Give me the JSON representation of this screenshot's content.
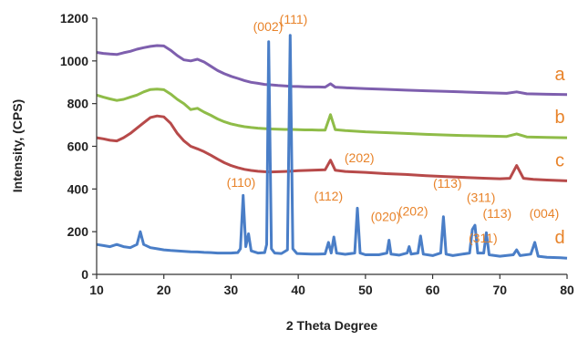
{
  "chart_data": {
    "type": "line",
    "title": "",
    "xlabel": "2 Theta Degree",
    "ylabel": "Intensity, (CPS)",
    "xlim": [
      10,
      80
    ],
    "ylim": [
      0,
      1200
    ],
    "xticks": [
      "10",
      "20",
      "30",
      "40",
      "50",
      "60",
      "70",
      "80"
    ],
    "yticks": [
      "0",
      "200",
      "400",
      "600",
      "800",
      "1000",
      "1200"
    ],
    "grid": false,
    "series": [
      {
        "name": "a",
        "color": "#7e5fae",
        "points": [
          [
            10,
            1040
          ],
          [
            11,
            1035
          ],
          [
            12,
            1032
          ],
          [
            13,
            1030
          ],
          [
            14,
            1038
          ],
          [
            15,
            1045
          ],
          [
            16,
            1055
          ],
          [
            17,
            1062
          ],
          [
            18,
            1068
          ],
          [
            19,
            1072
          ],
          [
            20,
            1070
          ],
          [
            21,
            1050
          ],
          [
            22,
            1025
          ],
          [
            23,
            1005
          ],
          [
            24,
            1000
          ],
          [
            25,
            1008
          ],
          [
            26,
            995
          ],
          [
            27,
            975
          ],
          [
            28,
            955
          ],
          [
            29,
            940
          ],
          [
            30,
            928
          ],
          [
            31,
            918
          ],
          [
            32,
            908
          ],
          [
            33,
            900
          ],
          [
            34,
            895
          ],
          [
            35,
            890
          ],
          [
            36,
            888
          ],
          [
            37,
            885
          ],
          [
            38,
            883
          ],
          [
            39,
            881
          ],
          [
            40,
            880
          ],
          [
            41,
            879
          ],
          [
            42,
            878
          ],
          [
            43,
            878
          ],
          [
            44,
            877
          ],
          [
            44.8,
            893
          ],
          [
            45.5,
            877
          ],
          [
            47,
            874
          ],
          [
            50,
            870
          ],
          [
            53,
            867
          ],
          [
            56,
            863
          ],
          [
            59,
            860
          ],
          [
            62,
            857
          ],
          [
            65,
            854
          ],
          [
            68,
            851
          ],
          [
            71,
            848
          ],
          [
            72.5,
            855
          ],
          [
            74,
            846
          ],
          [
            77,
            844
          ],
          [
            80,
            842
          ]
        ]
      },
      {
        "name": "b",
        "color": "#8fbc48",
        "points": [
          [
            10,
            840
          ],
          [
            11,
            830
          ],
          [
            12,
            822
          ],
          [
            13,
            815
          ],
          [
            14,
            820
          ],
          [
            15,
            830
          ],
          [
            16,
            840
          ],
          [
            17,
            855
          ],
          [
            18,
            866
          ],
          [
            19,
            868
          ],
          [
            20,
            865
          ],
          [
            21,
            845
          ],
          [
            22,
            820
          ],
          [
            23,
            800
          ],
          [
            24,
            772
          ],
          [
            25,
            778
          ],
          [
            26,
            760
          ],
          [
            27,
            745
          ],
          [
            28,
            728
          ],
          [
            29,
            715
          ],
          [
            30,
            705
          ],
          [
            31,
            698
          ],
          [
            32,
            692
          ],
          [
            33,
            688
          ],
          [
            34,
            685
          ],
          [
            35,
            683
          ],
          [
            36,
            681
          ],
          [
            37,
            680
          ],
          [
            38,
            679
          ],
          [
            39,
            679
          ],
          [
            40,
            678
          ],
          [
            41,
            677
          ],
          [
            42,
            677
          ],
          [
            43,
            676
          ],
          [
            44,
            676
          ],
          [
            44.8,
            748
          ],
          [
            45.5,
            678
          ],
          [
            47,
            674
          ],
          [
            50,
            668
          ],
          [
            53,
            664
          ],
          [
            56,
            660
          ],
          [
            59,
            656
          ],
          [
            62,
            653
          ],
          [
            65,
            650
          ],
          [
            68,
            648
          ],
          [
            71,
            646
          ],
          [
            72.5,
            658
          ],
          [
            74,
            644
          ],
          [
            77,
            642
          ],
          [
            80,
            640
          ]
        ]
      },
      {
        "name": "c",
        "color": "#b74a4a",
        "points": [
          [
            10,
            640
          ],
          [
            11,
            635
          ],
          [
            12,
            628
          ],
          [
            13,
            625
          ],
          [
            14,
            640
          ],
          [
            15,
            660
          ],
          [
            16,
            685
          ],
          [
            17,
            710
          ],
          [
            18,
            735
          ],
          [
            19,
            742
          ],
          [
            20,
            738
          ],
          [
            21,
            708
          ],
          [
            22,
            660
          ],
          [
            23,
            625
          ],
          [
            24,
            600
          ],
          [
            25,
            588
          ],
          [
            26,
            575
          ],
          [
            27,
            558
          ],
          [
            28,
            540
          ],
          [
            29,
            523
          ],
          [
            30,
            510
          ],
          [
            31,
            500
          ],
          [
            32,
            492
          ],
          [
            33,
            487
          ],
          [
            34,
            483
          ],
          [
            35,
            481
          ],
          [
            36,
            480
          ],
          [
            37,
            481
          ],
          [
            38,
            482
          ],
          [
            39,
            484
          ],
          [
            40,
            486
          ],
          [
            41,
            487
          ],
          [
            42,
            488
          ],
          [
            43,
            489
          ],
          [
            44,
            490
          ],
          [
            44.8,
            535
          ],
          [
            45.5,
            488
          ],
          [
            47,
            482
          ],
          [
            50,
            478
          ],
          [
            53,
            472
          ],
          [
            56,
            468
          ],
          [
            59,
            462
          ],
          [
            62,
            458
          ],
          [
            65,
            454
          ],
          [
            68,
            450
          ],
          [
            70,
            448
          ],
          [
            71.5,
            450
          ],
          [
            72.5,
            510
          ],
          [
            73.5,
            450
          ],
          [
            75,
            445
          ],
          [
            77,
            442
          ],
          [
            80,
            438
          ]
        ]
      },
      {
        "name": "d",
        "color": "#4a7ec7",
        "points": [
          [
            10,
            140
          ],
          [
            11,
            135
          ],
          [
            12,
            130
          ],
          [
            13,
            140
          ],
          [
            14,
            130
          ],
          [
            15,
            125
          ],
          [
            16,
            140
          ],
          [
            16.5,
            200
          ],
          [
            17,
            140
          ],
          [
            18,
            125
          ],
          [
            19,
            120
          ],
          [
            20,
            115
          ],
          [
            21,
            112
          ],
          [
            22,
            110
          ],
          [
            23,
            108
          ],
          [
            24,
            106
          ],
          [
            25,
            105
          ],
          [
            26,
            103
          ],
          [
            27,
            102
          ],
          [
            28,
            100
          ],
          [
            29,
            100
          ],
          [
            30,
            100
          ],
          [
            31,
            102
          ],
          [
            31.4,
            120
          ],
          [
            31.8,
            370
          ],
          [
            32.2,
            130
          ],
          [
            32.6,
            190
          ],
          [
            33,
            110
          ],
          [
            34,
            100
          ],
          [
            35,
            102
          ],
          [
            35.3,
            140
          ],
          [
            35.6,
            1090
          ],
          [
            36,
            120
          ],
          [
            36.5,
            100
          ],
          [
            37.5,
            98
          ],
          [
            38.4,
            115
          ],
          [
            38.8,
            1120
          ],
          [
            39.2,
            120
          ],
          [
            39.8,
            98
          ],
          [
            41,
            96
          ],
          [
            42,
            95
          ],
          [
            43,
            95
          ],
          [
            44,
            96
          ],
          [
            44.5,
            150
          ],
          [
            44.9,
            100
          ],
          [
            45.3,
            175
          ],
          [
            45.7,
            100
          ],
          [
            47,
            94
          ],
          [
            48.4,
            100
          ],
          [
            48.8,
            310
          ],
          [
            49.2,
            100
          ],
          [
            50,
            92
          ],
          [
            52,
            92
          ],
          [
            53.2,
            100
          ],
          [
            53.5,
            160
          ],
          [
            53.8,
            95
          ],
          [
            55,
            90
          ],
          [
            56.2,
            100
          ],
          [
            56.5,
            130
          ],
          [
            56.8,
            95
          ],
          [
            57.8,
            100
          ],
          [
            58.2,
            180
          ],
          [
            58.6,
            95
          ],
          [
            60,
            88
          ],
          [
            61.2,
            100
          ],
          [
            61.6,
            270
          ],
          [
            62,
            95
          ],
          [
            63,
            88
          ],
          [
            65.5,
            100
          ],
          [
            65.9,
            210
          ],
          [
            66.3,
            230
          ],
          [
            66.7,
            100
          ],
          [
            67.6,
            100
          ],
          [
            68,
            195
          ],
          [
            68.4,
            92
          ],
          [
            70,
            85
          ],
          [
            72,
            92
          ],
          [
            72.5,
            115
          ],
          [
            73,
            88
          ],
          [
            74.6,
            95
          ],
          [
            75.2,
            150
          ],
          [
            75.7,
            85
          ],
          [
            77,
            80
          ],
          [
            79,
            78
          ],
          [
            80,
            76
          ]
        ]
      }
    ],
    "peak_labels": [
      {
        "text": "(002)",
        "x": 35.5,
        "y": 1140
      },
      {
        "text": "(111)",
        "x": 39.3,
        "y": 1175
      },
      {
        "text": "(110)",
        "x": 31.5,
        "y": 410
      },
      {
        "text": "(202)",
        "x": 49.1,
        "y": 525
      },
      {
        "text": "(112)",
        "x": 44.5,
        "y": 345
      },
      {
        "text": "(020)",
        "x": 53.0,
        "y": 250
      },
      {
        "text": "(202)",
        "x": 57.1,
        "y": 275
      },
      {
        "text": "(113)",
        "x": 62.2,
        "y": 405
      },
      {
        "text": "(311)",
        "x": 67.2,
        "y": 340
      },
      {
        "text": "(113)",
        "x": 69.6,
        "y": 265
      },
      {
        "text": "(311)",
        "x": 67.5,
        "y": 150
      },
      {
        "text": "(004)",
        "x": 76.6,
        "y": 265
      }
    ]
  }
}
